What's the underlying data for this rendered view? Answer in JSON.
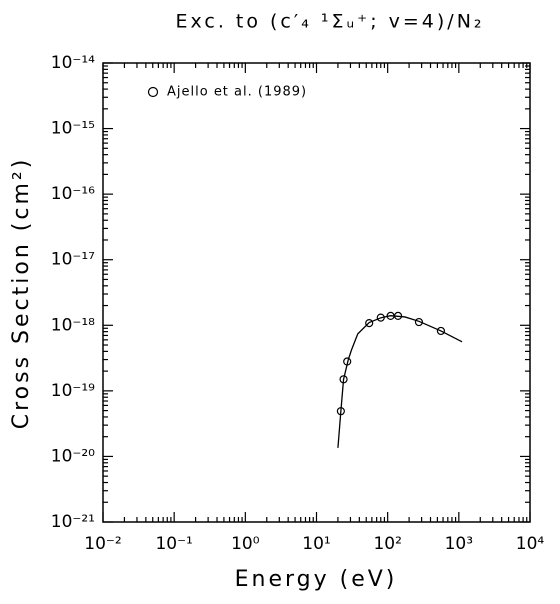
{
  "chart_data": {
    "type": "scatter",
    "title": "Exc. to (c′₄ ¹Σᵤ⁺; v=4)/N₂",
    "x_label": "Energy (eV)",
    "y_label": "Cross Section (cm²)",
    "x_scale": "log",
    "y_scale": "log",
    "minor_ticks": true,
    "xlim": [
      0.01,
      10000
    ],
    "ylim": [
      1e-21,
      1e-14
    ],
    "xticks": [
      {
        "value": 0.01,
        "label": "10⁻²"
      },
      {
        "value": 0.1,
        "label": "10⁻¹"
      },
      {
        "value": 1,
        "label": "10⁰"
      },
      {
        "value": 10,
        "label": "10¹"
      },
      {
        "value": 100,
        "label": "10²"
      },
      {
        "value": 1000,
        "label": "10³"
      },
      {
        "value": 10000,
        "label": "10⁴"
      }
    ],
    "yticks": [
      {
        "value": 1e-21,
        "label": "10⁻²¹"
      },
      {
        "value": 1e-20,
        "label": "10⁻²⁰"
      },
      {
        "value": 1e-19,
        "label": "10⁻¹⁹"
      },
      {
        "value": 1e-18,
        "label": "10⁻¹⁸"
      },
      {
        "value": 1e-17,
        "label": "10⁻¹⁷"
      },
      {
        "value": 1e-16,
        "label": "10⁻¹⁶"
      },
      {
        "value": 1e-15,
        "label": "10⁻¹⁵"
      },
      {
        "value": 1e-14,
        "label": "10⁻¹⁴"
      }
    ],
    "legend": "upper left",
    "series": [
      {
        "name": "Ajello et al. (1989)",
        "type": "scatter",
        "color": "#000000",
        "x": [
          22,
          24,
          27,
          55,
          80,
          110,
          140,
          275,
          560
        ],
        "values": [
          4.9e-20,
          1.5e-19,
          2.8e-19,
          1.08e-18,
          1.31e-18,
          1.39e-18,
          1.39e-18,
          1.12e-18,
          8.2e-19
        ]
      },
      {
        "type": "line",
        "color": "#000000",
        "x": [
          20,
          22,
          24,
          28,
          31,
          38,
          55,
          80,
          110,
          175,
          275,
          560,
          1110
        ],
        "values": [
          1.35e-20,
          4.9e-20,
          1.5e-19,
          3e-19,
          4.2e-19,
          7.4e-19,
          1.1e-18,
          1.3e-18,
          1.4e-18,
          1.34e-18,
          1.15e-18,
          8.2e-19,
          5.6e-19
        ]
      }
    ]
  }
}
